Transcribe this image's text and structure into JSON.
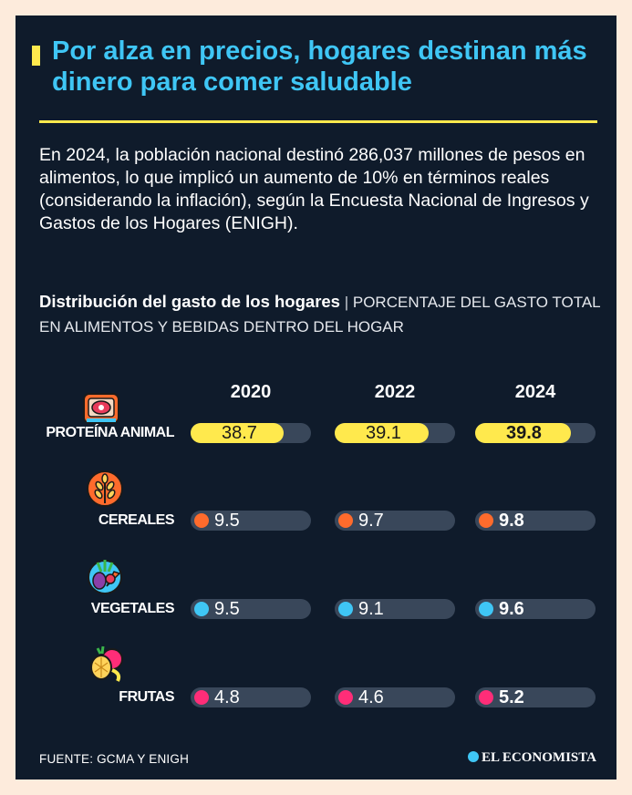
{
  "title": "Por alza en precios, hogares destinan más dinero para comer saludable",
  "intro": "En 2024, la población nacional destinó 286,037 millones de pesos en alimentos, lo que implicó un aumento de 10% en términos reales (considerando la inflación), según la Encuesta Nacional de Ingresos y Gastos de los Hogares (ENIGH).",
  "subtitle_bold": "Distribución del gasto de los hogares",
  "subtitle_sep": "|",
  "subtitle_light": "PORCENTAJE DEL GASTO TOTAL EN ALIMENTOS Y BEBIDAS DENTRO DEL HOGAR",
  "source": "FUENTE: GCMA Y ENIGH",
  "brand": "EL ECONOMISTA",
  "colors": {
    "background": "#0f1b2b",
    "title": "#3fc6f5",
    "accent_yellow": "#ffe94d",
    "track": "#39475a"
  },
  "chart_data": {
    "type": "bar",
    "categories": [
      "PROTEÍNA ANIMAL",
      "CEREALES",
      "VEGETALES",
      "FRUTAS"
    ],
    "icons": [
      "meat-package-icon",
      "wheat-icon",
      "vegetables-icon",
      "fruits-icon"
    ],
    "category_colors": [
      "#ffe94d",
      "#ff6b2c",
      "#3fc6f5",
      "#ff2d78"
    ],
    "series": [
      {
        "name": "2020",
        "values": [
          38.7,
          9.5,
          9.5,
          4.8
        ]
      },
      {
        "name": "2022",
        "values": [
          39.1,
          9.7,
          9.1,
          4.6
        ]
      },
      {
        "name": "2024",
        "values": [
          39.8,
          9.8,
          9.6,
          5.2
        ]
      }
    ],
    "value_labels": [
      [
        "38.7",
        "9.5",
        "9.5",
        "4.8"
      ],
      [
        "39.1",
        "9.7",
        "9.1",
        "4.6"
      ],
      [
        "39.8",
        "9.8",
        "9.6",
        "5.2"
      ]
    ],
    "ylim": [
      0,
      50
    ],
    "grid": false,
    "legend": "none"
  }
}
